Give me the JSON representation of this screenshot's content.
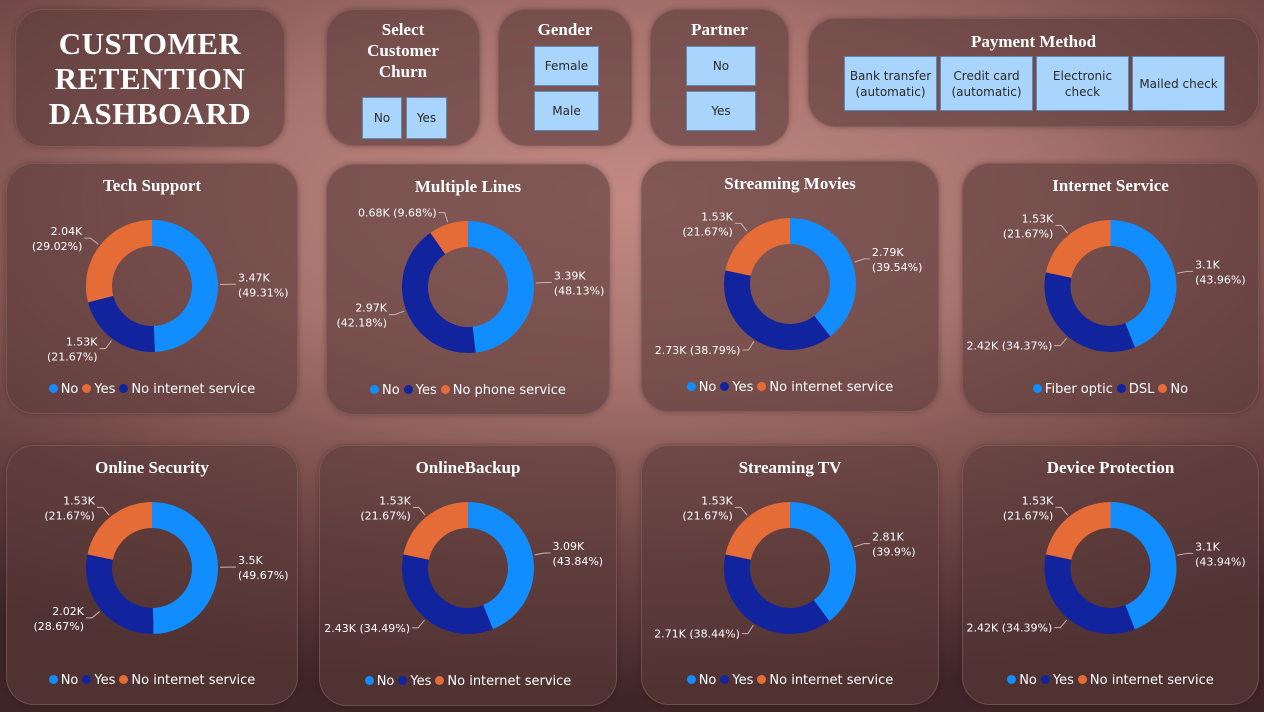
{
  "dashboard_title": "CUSTOMER RETENTION DASHBOARD",
  "colors": {
    "no_blue": "#118dff",
    "dark_blue": "#12239e",
    "orange": "#e66c37"
  },
  "slicers": {
    "churn": {
      "title": "Select Customer Churn",
      "options": [
        "No",
        "Yes"
      ]
    },
    "gender": {
      "title": "Gender",
      "options": [
        "Female",
        "Male"
      ]
    },
    "partner": {
      "title": "Partner",
      "options": [
        "No",
        "Yes"
      ]
    },
    "payment": {
      "title": "Payment Method",
      "options": [
        "Bank transfer (automatic)",
        "Credit card (automatic)",
        "Electronic check",
        "Mailed check"
      ]
    }
  },
  "chart_data": [
    {
      "type": "pie",
      "title": "Tech Support",
      "legend": [
        "No",
        "Yes",
        "No internet service"
      ],
      "slices": [
        {
          "name": "No",
          "value": 3470,
          "pct": 49.31,
          "label": "3.47K",
          "pct_label": "(49.31%)",
          "color": "#118dff"
        },
        {
          "name": "No internet service",
          "value": 1530,
          "pct": 21.67,
          "label": "1.53K",
          "pct_label": "(21.67%)",
          "color": "#12239e"
        },
        {
          "name": "Yes",
          "value": 2040,
          "pct": 29.02,
          "label": "2.04K",
          "pct_label": "(29.02%)",
          "color": "#e66c37"
        }
      ]
    },
    {
      "type": "pie",
      "title": "Multiple Lines",
      "legend": [
        "No",
        "Yes",
        "No phone service"
      ],
      "slices": [
        {
          "name": "No",
          "value": 3390,
          "pct": 48.13,
          "label": "3.39K",
          "pct_label": "(48.13%)",
          "color": "#118dff"
        },
        {
          "name": "Yes",
          "value": 2970,
          "pct": 42.18,
          "label": "2.97K",
          "pct_label": "(42.18%)",
          "color": "#12239e"
        },
        {
          "name": "No phone service",
          "value": 680,
          "pct": 9.68,
          "label": "0.68K (9.68%)",
          "pct_label": "",
          "color": "#e66c37"
        }
      ]
    },
    {
      "type": "pie",
      "title": "Streaming Movies",
      "legend": [
        "No",
        "Yes",
        "No internet service"
      ],
      "slices": [
        {
          "name": "No",
          "value": 2790,
          "pct": 39.54,
          "label": "2.79K",
          "pct_label": "(39.54%)",
          "color": "#118dff"
        },
        {
          "name": "Yes",
          "value": 2730,
          "pct": 38.79,
          "label": "2.73K (38.79%)",
          "pct_label": "",
          "color": "#12239e"
        },
        {
          "name": "No internet service",
          "value": 1530,
          "pct": 21.67,
          "label": "1.53K",
          "pct_label": "(21.67%)",
          "color": "#e66c37"
        }
      ]
    },
    {
      "type": "pie",
      "title": "Internet Service",
      "legend": [
        "Fiber optic",
        "DSL",
        "No"
      ],
      "slices": [
        {
          "name": "Fiber optic",
          "value": 3100,
          "pct": 43.96,
          "label": "3.1K",
          "pct_label": "(43.96%)",
          "color": "#118dff"
        },
        {
          "name": "DSL",
          "value": 2420,
          "pct": 34.37,
          "label": "2.42K (34.37%)",
          "pct_label": "",
          "color": "#12239e"
        },
        {
          "name": "No",
          "value": 1530,
          "pct": 21.67,
          "label": "1.53K",
          "pct_label": "(21.67%)",
          "color": "#e66c37"
        }
      ]
    },
    {
      "type": "pie",
      "title": "Online Security",
      "legend": [
        "No",
        "Yes",
        "No internet service"
      ],
      "slices": [
        {
          "name": "No",
          "value": 3500,
          "pct": 49.67,
          "label": "3.5K",
          "pct_label": "(49.67%)",
          "color": "#118dff"
        },
        {
          "name": "Yes",
          "value": 2020,
          "pct": 28.67,
          "label": "2.02K",
          "pct_label": "(28.67%)",
          "color": "#12239e"
        },
        {
          "name": "No internet service",
          "value": 1530,
          "pct": 21.67,
          "label": "1.53K",
          "pct_label": "(21.67%)",
          "color": "#e66c37"
        }
      ]
    },
    {
      "type": "pie",
      "title": "OnlineBackup",
      "legend": [
        "No",
        "Yes",
        "No internet service"
      ],
      "slices": [
        {
          "name": "No",
          "value": 3090,
          "pct": 43.84,
          "label": "3.09K",
          "pct_label": "(43.84%)",
          "color": "#118dff"
        },
        {
          "name": "Yes",
          "value": 2430,
          "pct": 34.49,
          "label": "2.43K (34.49%)",
          "pct_label": "",
          "color": "#12239e"
        },
        {
          "name": "No internet service",
          "value": 1530,
          "pct": 21.67,
          "label": "1.53K",
          "pct_label": "(21.67%)",
          "color": "#e66c37"
        }
      ]
    },
    {
      "type": "pie",
      "title": "Streaming TV",
      "legend": [
        "No",
        "Yes",
        "No internet service"
      ],
      "slices": [
        {
          "name": "No",
          "value": 2810,
          "pct": 39.9,
          "label": "2.81K",
          "pct_label": "(39.9%)",
          "color": "#118dff"
        },
        {
          "name": "Yes",
          "value": 2710,
          "pct": 38.44,
          "label": "2.71K (38.44%)",
          "pct_label": "",
          "color": "#12239e"
        },
        {
          "name": "No internet service",
          "value": 1530,
          "pct": 21.67,
          "label": "1.53K",
          "pct_label": "(21.67%)",
          "color": "#e66c37"
        }
      ]
    },
    {
      "type": "pie",
      "title": "Device Protection",
      "legend": [
        "No",
        "Yes",
        "No internet service"
      ],
      "slices": [
        {
          "name": "No",
          "value": 3100,
          "pct": 43.94,
          "label": "3.1K",
          "pct_label": "(43.94%)",
          "color": "#118dff"
        },
        {
          "name": "Yes",
          "value": 2420,
          "pct": 34.39,
          "label": "2.42K (34.39%)",
          "pct_label": "",
          "color": "#12239e"
        },
        {
          "name": "No internet service",
          "value": 1530,
          "pct": 21.67,
          "label": "1.53K",
          "pct_label": "(21.67%)",
          "color": "#e66c37"
        }
      ]
    }
  ]
}
